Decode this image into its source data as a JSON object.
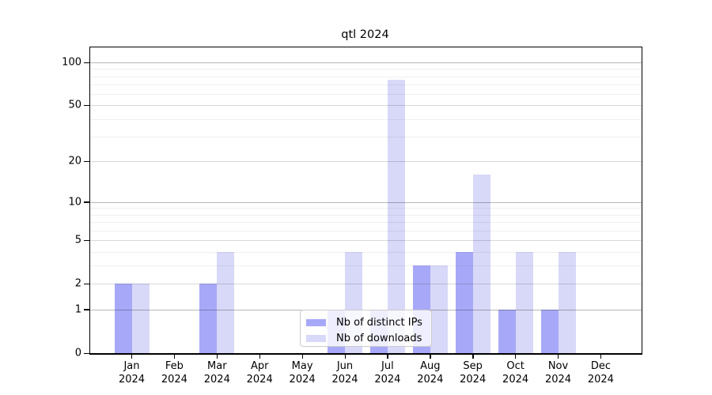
{
  "chart_data": {
    "type": "bar",
    "title": "qtl 2024",
    "months": [
      "Jan",
      "Feb",
      "Mar",
      "Apr",
      "May",
      "Jun",
      "Jul",
      "Aug",
      "Sep",
      "Oct",
      "Nov",
      "Dec"
    ],
    "year": "2024",
    "categories": [
      "Jan 2024",
      "Feb 2024",
      "Mar 2024",
      "Apr 2024",
      "May 2024",
      "Jun 2024",
      "Jul 2024",
      "Aug 2024",
      "Sep 2024",
      "Oct 2024",
      "Nov 2024",
      "Dec 2024"
    ],
    "series": [
      {
        "name": "Nb of distinct IPs",
        "color": "#a8a8f8",
        "values": [
          2,
          0,
          2,
          0,
          0,
          1,
          1,
          3,
          4,
          1,
          1,
          0
        ]
      },
      {
        "name": "Nb of downloads",
        "color": "#d8d8f8",
        "values": [
          2,
          0,
          4,
          0,
          0,
          4,
          76,
          3,
          16,
          4,
          4,
          0
        ]
      }
    ],
    "y_axis": {
      "scale": "log1p",
      "ticks": [
        0,
        1,
        2,
        5,
        10,
        20,
        50,
        100
      ],
      "minor_gridlines": [
        3,
        4,
        6,
        7,
        8,
        9,
        30,
        40,
        60,
        70,
        80,
        90
      ],
      "range": [
        0,
        130
      ]
    },
    "xlabel": "",
    "ylabel": "",
    "grid": "horizontal",
    "legend_position": "lower-center"
  },
  "colors": {
    "background": "#ffffff",
    "spine": "#000000",
    "grid_strong": "rgba(0,0,0,0.28)",
    "grid_mid": "rgba(0,0,0,0.15)",
    "grid_minor": "rgba(0,0,0,0.06)",
    "legend_border": "#cbcbcb"
  }
}
